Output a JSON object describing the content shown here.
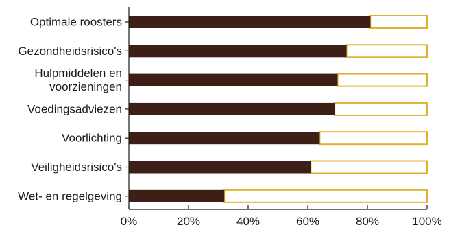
{
  "chart_data": {
    "type": "bar",
    "orientation": "horizontal",
    "stacked_to_100": true,
    "categories": [
      [
        "Optimale roosters"
      ],
      [
        "Gezondheidsrisico's"
      ],
      [
        "Hulpmiddelen en",
        "voorzieningen"
      ],
      [
        "Voedingsadviezen"
      ],
      [
        "Voorlichting"
      ],
      [
        "Veiligheidsrisico's"
      ],
      [
        "Wet- en regelgeving"
      ]
    ],
    "values": [
      81,
      73,
      70,
      69,
      64,
      61,
      32
    ],
    "remainder_values": [
      19,
      27,
      30,
      31,
      36,
      39,
      68
    ],
    "xlim": [
      0,
      100
    ],
    "xticks": [
      0,
      20,
      40,
      60,
      80,
      100
    ],
    "tick_labels": [
      "0%",
      "20%",
      "40%",
      "60%",
      "80%",
      "100%"
    ],
    "title": "",
    "xlabel": "",
    "ylabel": "",
    "grid": false,
    "colors": {
      "filled": "#3d1f17",
      "remainder_border": "#e0b12e",
      "remainder_fill": "#ffffff",
      "axis": "#1a1a1a"
    }
  }
}
